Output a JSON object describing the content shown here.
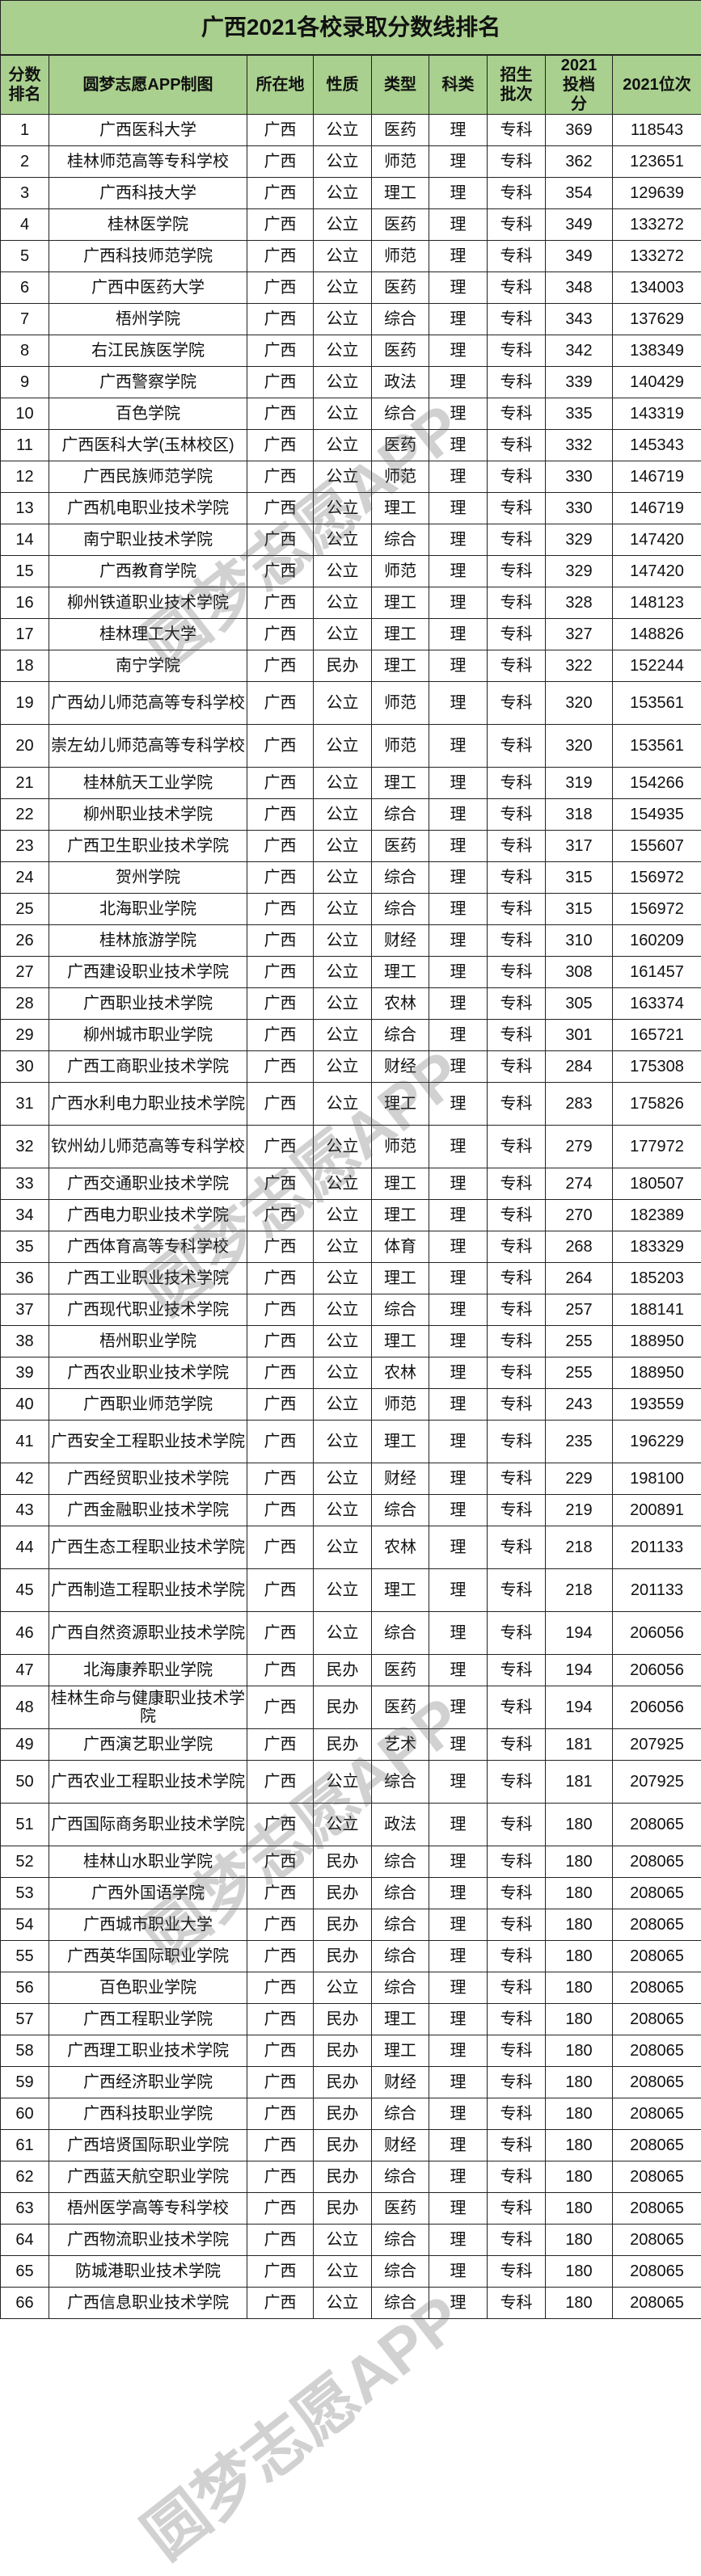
{
  "title": "广西2021各校录取分数线排名",
  "watermark": "圆梦志愿APP",
  "header_color": "#a9d08e",
  "columns": [
    "分数排名",
    "圆梦志愿APP制图",
    "所在地",
    "性质",
    "类型",
    "科类",
    "招生批次",
    "2021投档分",
    "2021位次"
  ],
  "rows": [
    [
      "1",
      "广西医科大学",
      "广西",
      "公立",
      "医药",
      "理",
      "专科",
      "369",
      "118543"
    ],
    [
      "2",
      "桂林师范高等专科学校",
      "广西",
      "公立",
      "师范",
      "理",
      "专科",
      "362",
      "123651"
    ],
    [
      "3",
      "广西科技大学",
      "广西",
      "公立",
      "理工",
      "理",
      "专科",
      "354",
      "129639"
    ],
    [
      "4",
      "桂林医学院",
      "广西",
      "公立",
      "医药",
      "理",
      "专科",
      "349",
      "133272"
    ],
    [
      "5",
      "广西科技师范学院",
      "广西",
      "公立",
      "师范",
      "理",
      "专科",
      "349",
      "133272"
    ],
    [
      "6",
      "广西中医药大学",
      "广西",
      "公立",
      "医药",
      "理",
      "专科",
      "348",
      "134003"
    ],
    [
      "7",
      "梧州学院",
      "广西",
      "公立",
      "综合",
      "理",
      "专科",
      "343",
      "137629"
    ],
    [
      "8",
      "右江民族医学院",
      "广西",
      "公立",
      "医药",
      "理",
      "专科",
      "342",
      "138349"
    ],
    [
      "9",
      "广西警察学院",
      "广西",
      "公立",
      "政法",
      "理",
      "专科",
      "339",
      "140429"
    ],
    [
      "10",
      "百色学院",
      "广西",
      "公立",
      "综合",
      "理",
      "专科",
      "335",
      "143319"
    ],
    [
      "11",
      "广西医科大学(玉林校区)",
      "广西",
      "公立",
      "医药",
      "理",
      "专科",
      "332",
      "145343"
    ],
    [
      "12",
      "广西民族师范学院",
      "广西",
      "公立",
      "师范",
      "理",
      "专科",
      "330",
      "146719"
    ],
    [
      "13",
      "广西机电职业技术学院",
      "广西",
      "公立",
      "理工",
      "理",
      "专科",
      "330",
      "146719"
    ],
    [
      "14",
      "南宁职业技术学院",
      "广西",
      "公立",
      "综合",
      "理",
      "专科",
      "329",
      "147420"
    ],
    [
      "15",
      "广西教育学院",
      "广西",
      "公立",
      "师范",
      "理",
      "专科",
      "329",
      "147420"
    ],
    [
      "16",
      "柳州铁道职业技术学院",
      "广西",
      "公立",
      "理工",
      "理",
      "专科",
      "328",
      "148123"
    ],
    [
      "17",
      "桂林理工大学",
      "广西",
      "公立",
      "理工",
      "理",
      "专科",
      "327",
      "148826"
    ],
    [
      "18",
      "南宁学院",
      "广西",
      "民办",
      "理工",
      "理",
      "专科",
      "322",
      "152244"
    ],
    [
      "19",
      "广西幼儿师范高等专科学校",
      "广西",
      "公立",
      "师范",
      "理",
      "专科",
      "320",
      "153561"
    ],
    [
      "20",
      "崇左幼儿师范高等专科学校",
      "广西",
      "公立",
      "师范",
      "理",
      "专科",
      "320",
      "153561"
    ],
    [
      "21",
      "桂林航天工业学院",
      "广西",
      "公立",
      "理工",
      "理",
      "专科",
      "319",
      "154266"
    ],
    [
      "22",
      "柳州职业技术学院",
      "广西",
      "公立",
      "综合",
      "理",
      "专科",
      "318",
      "154935"
    ],
    [
      "23",
      "广西卫生职业技术学院",
      "广西",
      "公立",
      "医药",
      "理",
      "专科",
      "317",
      "155607"
    ],
    [
      "24",
      "贺州学院",
      "广西",
      "公立",
      "综合",
      "理",
      "专科",
      "315",
      "156972"
    ],
    [
      "25",
      "北海职业学院",
      "广西",
      "公立",
      "综合",
      "理",
      "专科",
      "315",
      "156972"
    ],
    [
      "26",
      "桂林旅游学院",
      "广西",
      "公立",
      "财经",
      "理",
      "专科",
      "310",
      "160209"
    ],
    [
      "27",
      "广西建设职业技术学院",
      "广西",
      "公立",
      "理工",
      "理",
      "专科",
      "308",
      "161457"
    ],
    [
      "28",
      "广西职业技术学院",
      "广西",
      "公立",
      "农林",
      "理",
      "专科",
      "305",
      "163374"
    ],
    [
      "29",
      "柳州城市职业学院",
      "广西",
      "公立",
      "综合",
      "理",
      "专科",
      "301",
      "165721"
    ],
    [
      "30",
      "广西工商职业技术学院",
      "广西",
      "公立",
      "财经",
      "理",
      "专科",
      "284",
      "175308"
    ],
    [
      "31",
      "广西水利电力职业技术学院",
      "广西",
      "公立",
      "理工",
      "理",
      "专科",
      "283",
      "175826"
    ],
    [
      "32",
      "钦州幼儿师范高等专科学校",
      "广西",
      "公立",
      "师范",
      "理",
      "专科",
      "279",
      "177972"
    ],
    [
      "33",
      "广西交通职业技术学院",
      "广西",
      "公立",
      "理工",
      "理",
      "专科",
      "274",
      "180507"
    ],
    [
      "34",
      "广西电力职业技术学院",
      "广西",
      "公立",
      "理工",
      "理",
      "专科",
      "270",
      "182389"
    ],
    [
      "35",
      "广西体育高等专科学校",
      "广西",
      "公立",
      "体育",
      "理",
      "专科",
      "268",
      "183329"
    ],
    [
      "36",
      "广西工业职业技术学院",
      "广西",
      "公立",
      "理工",
      "理",
      "专科",
      "264",
      "185203"
    ],
    [
      "37",
      "广西现代职业技术学院",
      "广西",
      "公立",
      "综合",
      "理",
      "专科",
      "257",
      "188141"
    ],
    [
      "38",
      "梧州职业学院",
      "广西",
      "公立",
      "理工",
      "理",
      "专科",
      "255",
      "188950"
    ],
    [
      "39",
      "广西农业职业技术学院",
      "广西",
      "公立",
      "农林",
      "理",
      "专科",
      "255",
      "188950"
    ],
    [
      "40",
      "广西职业师范学院",
      "广西",
      "公立",
      "师范",
      "理",
      "专科",
      "243",
      "193559"
    ],
    [
      "41",
      "广西安全工程职业技术学院",
      "广西",
      "公立",
      "理工",
      "理",
      "专科",
      "235",
      "196229"
    ],
    [
      "42",
      "广西经贸职业技术学院",
      "广西",
      "公立",
      "财经",
      "理",
      "专科",
      "229",
      "198100"
    ],
    [
      "43",
      "广西金融职业技术学院",
      "广西",
      "公立",
      "综合",
      "理",
      "专科",
      "219",
      "200891"
    ],
    [
      "44",
      "广西生态工程职业技术学院",
      "广西",
      "公立",
      "农林",
      "理",
      "专科",
      "218",
      "201133"
    ],
    [
      "45",
      "广西制造工程职业技术学院",
      "广西",
      "公立",
      "理工",
      "理",
      "专科",
      "218",
      "201133"
    ],
    [
      "46",
      "广西自然资源职业技术学院",
      "广西",
      "公立",
      "综合",
      "理",
      "专科",
      "194",
      "206056"
    ],
    [
      "47",
      "北海康养职业学院",
      "广西",
      "民办",
      "医药",
      "理",
      "专科",
      "194",
      "206056"
    ],
    [
      "48",
      "桂林生命与健康职业技术学院",
      "广西",
      "民办",
      "医药",
      "理",
      "专科",
      "194",
      "206056"
    ],
    [
      "49",
      "广西演艺职业学院",
      "广西",
      "民办",
      "艺术",
      "理",
      "专科",
      "181",
      "207925"
    ],
    [
      "50",
      "广西农业工程职业技术学院",
      "广西",
      "公立",
      "综合",
      "理",
      "专科",
      "181",
      "207925"
    ],
    [
      "51",
      "广西国际商务职业技术学院",
      "广西",
      "公立",
      "政法",
      "理",
      "专科",
      "180",
      "208065"
    ],
    [
      "52",
      "桂林山水职业学院",
      "广西",
      "民办",
      "综合",
      "理",
      "专科",
      "180",
      "208065"
    ],
    [
      "53",
      "广西外国语学院",
      "广西",
      "民办",
      "综合",
      "理",
      "专科",
      "180",
      "208065"
    ],
    [
      "54",
      "广西城市职业大学",
      "广西",
      "民办",
      "综合",
      "理",
      "专科",
      "180",
      "208065"
    ],
    [
      "55",
      "广西英华国际职业学院",
      "广西",
      "民办",
      "综合",
      "理",
      "专科",
      "180",
      "208065"
    ],
    [
      "56",
      "百色职业学院",
      "广西",
      "公立",
      "综合",
      "理",
      "专科",
      "180",
      "208065"
    ],
    [
      "57",
      "广西工程职业学院",
      "广西",
      "民办",
      "理工",
      "理",
      "专科",
      "180",
      "208065"
    ],
    [
      "58",
      "广西理工职业技术学院",
      "广西",
      "民办",
      "理工",
      "理",
      "专科",
      "180",
      "208065"
    ],
    [
      "59",
      "广西经济职业学院",
      "广西",
      "民办",
      "财经",
      "理",
      "专科",
      "180",
      "208065"
    ],
    [
      "60",
      "广西科技职业学院",
      "广西",
      "民办",
      "综合",
      "理",
      "专科",
      "180",
      "208065"
    ],
    [
      "61",
      "广西培贤国际职业学院",
      "广西",
      "民办",
      "财经",
      "理",
      "专科",
      "180",
      "208065"
    ],
    [
      "62",
      "广西蓝天航空职业学院",
      "广西",
      "民办",
      "综合",
      "理",
      "专科",
      "180",
      "208065"
    ],
    [
      "63",
      "梧州医学高等专科学校",
      "广西",
      "民办",
      "医药",
      "理",
      "专科",
      "180",
      "208065"
    ],
    [
      "64",
      "广西物流职业技术学院",
      "广西",
      "公立",
      "综合",
      "理",
      "专科",
      "180",
      "208065"
    ],
    [
      "65",
      "防城港职业技术学院",
      "广西",
      "公立",
      "综合",
      "理",
      "专科",
      "180",
      "208065"
    ],
    [
      "66",
      "广西信息职业技术学院",
      "广西",
      "公立",
      "综合",
      "理",
      "专科",
      "180",
      "208065"
    ]
  ]
}
